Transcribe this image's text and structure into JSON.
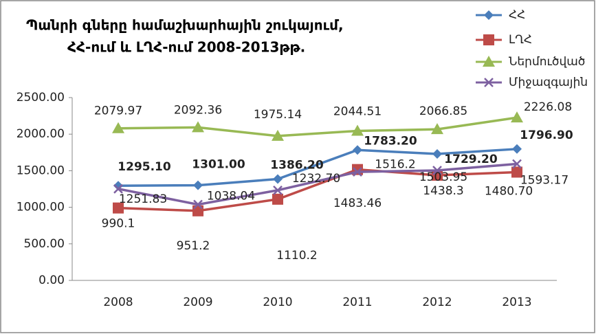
{
  "chart_data": {
    "type": "line",
    "title": [
      "Պանրի գները  համաշխարհային շուկայում,",
      "ՀՀ-ում և ԼՂՀ-ում 2008-2013թթ."
    ],
    "categories": [
      "2008",
      "2009",
      "2010",
      "2011",
      "2012",
      "2013"
    ],
    "series": [
      {
        "name": "ՀՀ",
        "color": "#4a7ebb",
        "marker": "diamond",
        "values": [
          1295.1,
          1301,
          1386.2,
          1783.2,
          1729.2,
          1796.9
        ],
        "value_labels": [
          "1295.10",
          "1301.00",
          "1386.20",
          "1783.20",
          "1729.20",
          "1796.90"
        ]
      },
      {
        "name": "ԼՂՀ",
        "color": "#be4b48",
        "marker": "square",
        "values": [
          990.1,
          951.2,
          1110.2,
          1516.2,
          1438.3,
          1480.7
        ],
        "value_labels": [
          "990.1",
          "951.2",
          "1110.2",
          "1516.2",
          "1438.3",
          "1480.70"
        ]
      },
      {
        "name": "Ներմուծված",
        "color": "#98b954",
        "marker": "triangle",
        "values": [
          2079.97,
          2092.36,
          1975.14,
          2044.51,
          2066.85,
          2226.08
        ]
      },
      {
        "name": "Միջազգային",
        "color": "#7d60a0",
        "marker": "x",
        "values": [
          1251.83,
          1038.04,
          1232.7,
          1483.46,
          1503.95,
          1593.17
        ],
        "value_labels": [
          "1251.83",
          "1038.04",
          "1232.70",
          "1483.46",
          "1503.95",
          "1593.17"
        ]
      }
    ],
    "ylim": [
      0,
      2500
    ],
    "yticks": [
      {
        "value": 0,
        "label": "0.00"
      },
      {
        "value": 500,
        "label": "500.00"
      },
      {
        "value": 1000,
        "label": "1000.00"
      },
      {
        "value": 1500,
        "label": "1500.00"
      },
      {
        "value": 2000,
        "label": "2000.00"
      },
      {
        "value": 2500,
        "label": "2500.00"
      }
    ],
    "legend": "top-right"
  }
}
